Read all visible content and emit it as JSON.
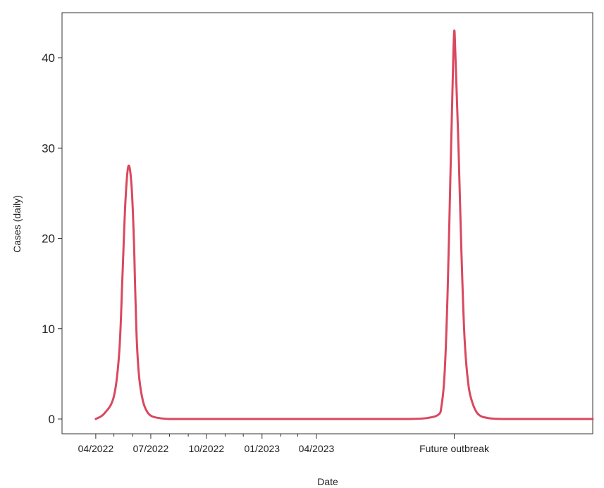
{
  "chart_data": {
    "type": "line",
    "xlabel": "Date",
    "ylabel": "Cases (daily)",
    "ylim": [
      0,
      45
    ],
    "y_ticks": [
      0,
      10,
      20,
      30,
      40
    ],
    "x_ticks": [
      {
        "date": "2022-04-01",
        "label": "04/2022"
      },
      {
        "date": "2022-07-01",
        "label": "07/2022"
      },
      {
        "date": "2022-10-01",
        "label": "10/2022"
      },
      {
        "date": "2023-01-01",
        "label": "01/2023"
      },
      {
        "date": "2023-04-01",
        "label": "04/2023"
      },
      {
        "date": "2023-11-15",
        "label": "Future outbreak"
      }
    ],
    "x_minor_ticks": [
      "2022-05-01",
      "2022-06-01",
      "2022-08-01",
      "2022-09-01",
      "2022-11-01",
      "2022-12-01",
      "2023-02-01",
      "2023-03-01"
    ],
    "xlim": [
      "2022-03-10",
      "2024-07-01"
    ],
    "line_color": "#d9485f",
    "grid": false,
    "series": [
      {
        "x": [
          "2022-04-01",
          "2022-04-15",
          "2022-05-01",
          "2022-05-10",
          "2022-05-15",
          "2022-05-20",
          "2022-05-25",
          "2022-05-30",
          "2022-06-03",
          "2022-06-05",
          "2022-06-08",
          "2022-06-12",
          "2022-06-18",
          "2022-06-25",
          "2022-07-03",
          "2022-07-15",
          "2022-08-01",
          "2022-09-01",
          "2022-10-01",
          "2022-11-01",
          "2022-12-01",
          "2023-01-01",
          "2023-02-01",
          "2023-03-01",
          "2023-04-01",
          "2023-05-01",
          "2023-06-01",
          "2023-07-01",
          "2023-08-01",
          "2023-09-01",
          "2023-10-01",
          "2023-10-20",
          "2023-10-25",
          "2023-10-30",
          "2023-11-04",
          "2023-11-09",
          "2023-11-13",
          "2023-11-15",
          "2023-11-17",
          "2023-11-22",
          "2023-11-27",
          "2023-12-02",
          "2023-12-08",
          "2023-12-15",
          "2023-12-25",
          "2024-01-10",
          "2024-02-01",
          "2024-03-01",
          "2024-04-01",
          "2024-05-01",
          "2024-06-01",
          "2024-07-01"
        ],
        "y": [
          0,
          0.6,
          2.5,
          7.5,
          15.5,
          24,
          28,
          26,
          20,
          15,
          8.5,
          4.5,
          2,
          0.8,
          0.3,
          0.1,
          0,
          0,
          0,
          0,
          0,
          0,
          0,
          0,
          0,
          0,
          0,
          0,
          0,
          0,
          0.1,
          0.5,
          1.5,
          5,
          14,
          28,
          39,
          43,
          40,
          30,
          18,
          9,
          4,
          1.8,
          0.5,
          0.1,
          0,
          0,
          0,
          0,
          0,
          0
        ]
      }
    ]
  }
}
